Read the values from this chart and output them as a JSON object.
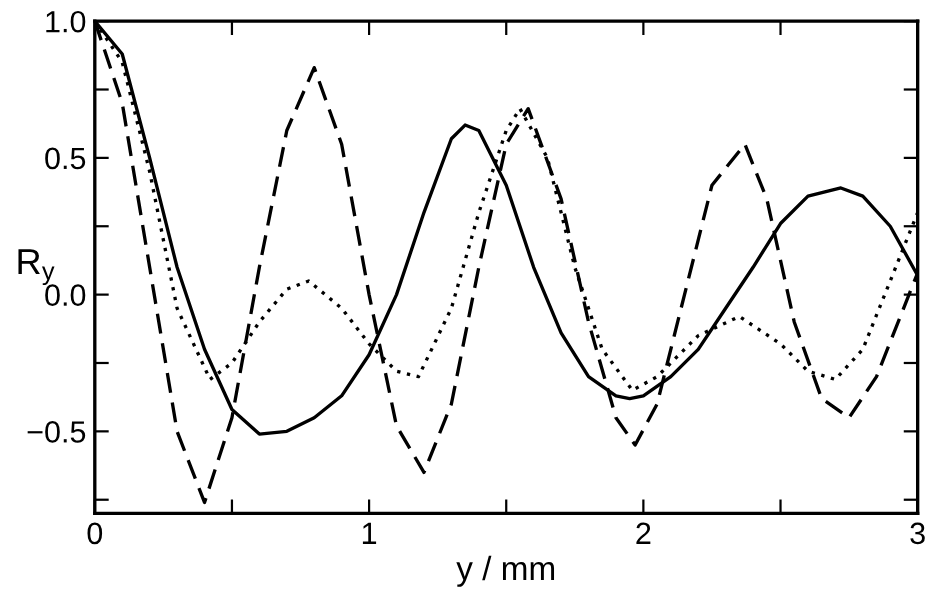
{
  "chart_data": {
    "type": "line",
    "xlabel": "y / mm",
    "ylabel": "R$_{y}$",
    "xlim": [
      0,
      3
    ],
    "ylim": [
      -0.8,
      1.0
    ],
    "xticks": [
      0,
      {
        "value": 0.5,
        "label": null
      },
      1,
      {
        "value": 1.5,
        "label": null
      },
      2,
      {
        "value": 2.5,
        "label": null
      },
      3
    ],
    "yticks": [
      {
        "value": -0.75,
        "label": null
      },
      {
        "value": -0.5,
        "label": "−0.5"
      },
      {
        "value": -0.25,
        "label": null
      },
      {
        "value": 0,
        "label": "0.0"
      },
      {
        "value": 0.25,
        "label": null
      },
      {
        "value": 0.5,
        "label": "0.5"
      },
      {
        "value": 0.75,
        "label": null
      },
      {
        "value": 1.0,
        "label": "1.0"
      }
    ],
    "grid": false,
    "legend": false,
    "marker": "none",
    "series": [
      {
        "color": "#000000",
        "line_style": "solid",
        "x": [
          0,
          0.1,
          0.2,
          0.3,
          0.4,
          0.5,
          0.6,
          0.7,
          0.8,
          0.9,
          1.0,
          1.1,
          1.2,
          1.3,
          1.35,
          1.4,
          1.5,
          1.6,
          1.7,
          1.8,
          1.9,
          1.95,
          2.0,
          2.1,
          2.2,
          2.3,
          2.4,
          2.5,
          2.6,
          2.72,
          2.8,
          2.9,
          3.0
        ],
        "values": [
          1.0,
          0.88,
          0.5,
          0.1,
          -0.2,
          -0.42,
          -0.51,
          -0.5,
          -0.45,
          -0.37,
          -0.22,
          0.0,
          0.3,
          0.57,
          0.62,
          0.6,
          0.4,
          0.1,
          -0.14,
          -0.3,
          -0.37,
          -0.38,
          -0.37,
          -0.3,
          -0.2,
          -0.05,
          0.1,
          0.26,
          0.36,
          0.39,
          0.36,
          0.25,
          0.07
        ]
      },
      {
        "color": "#000000",
        "line_style": "dashed",
        "x": [
          0,
          0.1,
          0.2,
          0.3,
          0.4,
          0.5,
          0.6,
          0.7,
          0.8,
          0.9,
          1.0,
          1.1,
          1.2,
          1.3,
          1.4,
          1.5,
          1.58,
          1.7,
          1.8,
          1.9,
          1.97,
          2.05,
          2.15,
          2.25,
          2.37,
          2.45,
          2.55,
          2.65,
          2.75,
          2.85,
          3.0
        ],
        "values": [
          1.0,
          0.7,
          0.1,
          -0.5,
          -0.76,
          -0.45,
          0.1,
          0.6,
          0.83,
          0.55,
          0.0,
          -0.48,
          -0.65,
          -0.4,
          0.1,
          0.55,
          0.68,
          0.35,
          -0.1,
          -0.45,
          -0.55,
          -0.4,
          0.0,
          0.4,
          0.55,
          0.35,
          -0.1,
          -0.38,
          -0.45,
          -0.3,
          0.08
        ]
      },
      {
        "color": "#000000",
        "line_style": "dotted",
        "x": [
          0,
          0.1,
          0.2,
          0.3,
          0.42,
          0.5,
          0.6,
          0.7,
          0.78,
          0.9,
          1.0,
          1.1,
          1.18,
          1.3,
          1.4,
          1.5,
          1.55,
          1.65,
          1.75,
          1.85,
          1.96,
          2.05,
          2.2,
          2.35,
          2.5,
          2.6,
          2.7,
          2.8,
          2.9,
          3.0
        ],
        "values": [
          1.0,
          0.85,
          0.45,
          -0.05,
          -0.31,
          -0.25,
          -0.1,
          0.02,
          0.05,
          -0.05,
          -0.18,
          -0.28,
          -0.3,
          -0.05,
          0.3,
          0.6,
          0.68,
          0.5,
          0.1,
          -0.2,
          -0.35,
          -0.3,
          -0.15,
          -0.08,
          -0.18,
          -0.28,
          -0.31,
          -0.2,
          0.05,
          0.3
        ]
      }
    ]
  }
}
